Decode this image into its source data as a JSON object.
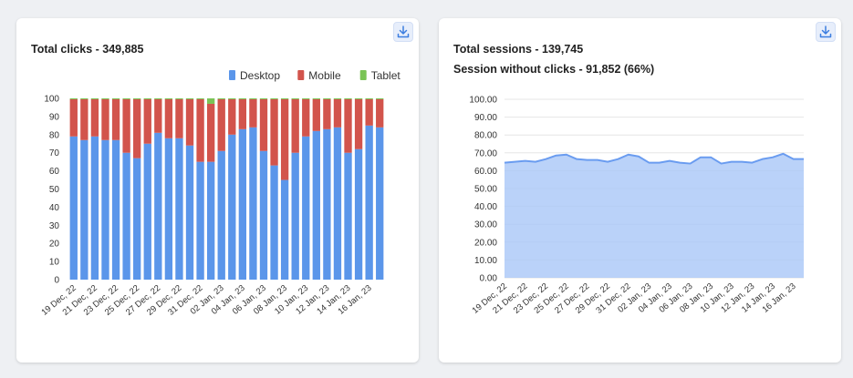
{
  "left_card": {
    "title": "Total clicks - 349,885",
    "download_icon": "download-icon"
  },
  "right_card": {
    "title": "Total sessions - 139,745",
    "subtitle": "Session without clicks - 91,852 (66%)",
    "download_icon": "download-icon"
  },
  "chart_data": [
    {
      "type": "bar",
      "stacked": true,
      "categories": [
        "19 Dec, 22",
        "20 Dec, 22",
        "21 Dec, 22",
        "22 Dec, 22",
        "23 Dec, 22",
        "24 Dec, 22",
        "25 Dec, 22",
        "26 Dec, 22",
        "27 Dec, 22",
        "28 Dec, 22",
        "29 Dec, 22",
        "30 Dec, 22",
        "31 Dec, 22",
        "01 Jan, 23",
        "02 Jan, 23",
        "03 Jan, 23",
        "04 Jan, 23",
        "05 Jan, 23",
        "06 Jan, 23",
        "07 Jan, 23",
        "08 Jan, 23",
        "09 Jan, 23",
        "10 Jan, 23",
        "11 Jan, 23",
        "12 Jan, 23",
        "13 Jan, 23",
        "14 Jan, 23",
        "15 Jan, 23",
        "16 Jan, 23",
        "17 Jan, 23"
      ],
      "x_tick_labels": [
        "19 Dec, 22",
        "21 Dec, 22",
        "23 Dec, 22",
        "25 Dec, 22",
        "27 Dec, 22",
        "29 Dec, 22",
        "31 Dec, 22",
        "02 Jan, 23",
        "04 Jan, 23",
        "06 Jan, 23",
        "08 Jan, 23",
        "10 Jan, 23",
        "12 Jan, 23",
        "14 Jan, 23",
        "16 Jan, 23"
      ],
      "series": [
        {
          "name": "Desktop",
          "color": "#5b96ea",
          "values": [
            79,
            77,
            79,
            77,
            77,
            70,
            67,
            75,
            81,
            78,
            78,
            74,
            65,
            65,
            71,
            80,
            83,
            84,
            71,
            63,
            55,
            70,
            79,
            82,
            83,
            84,
            70,
            72,
            85,
            84
          ]
        },
        {
          "name": "Mobile",
          "color": "#d2544c",
          "values": [
            20.5,
            22.5,
            20.5,
            22.5,
            22.5,
            29.5,
            32.5,
            24.5,
            18.5,
            21.5,
            21.5,
            25.5,
            34.5,
            32,
            28.5,
            19.5,
            16.5,
            15.5,
            28.5,
            36.5,
            44.5,
            29.5,
            20.5,
            17.5,
            16.5,
            15.5,
            29.5,
            27.5,
            14.5,
            15.5
          ]
        },
        {
          "name": "Tablet",
          "color": "#7ac456",
          "values": [
            0.5,
            0.5,
            0.5,
            0.5,
            0.5,
            0.5,
            0.5,
            0.5,
            0.5,
            0.5,
            0.5,
            0.5,
            0.5,
            3,
            0.5,
            0.5,
            0.5,
            0.5,
            0.5,
            0.5,
            0.5,
            0.5,
            0.5,
            0.5,
            0.5,
            0.5,
            0.5,
            0.5,
            0.5,
            0.5
          ]
        }
      ],
      "y_ticks": [
        0,
        10,
        20,
        30,
        40,
        50,
        60,
        70,
        80,
        90,
        100
      ],
      "ylim": [
        0,
        100
      ],
      "legend_position": "top-right",
      "grid": false
    },
    {
      "type": "area",
      "categories": [
        "19 Dec, 22",
        "20 Dec, 22",
        "21 Dec, 22",
        "22 Dec, 22",
        "23 Dec, 22",
        "24 Dec, 22",
        "25 Dec, 22",
        "26 Dec, 22",
        "27 Dec, 22",
        "28 Dec, 22",
        "29 Dec, 22",
        "30 Dec, 22",
        "31 Dec, 22",
        "01 Jan, 23",
        "02 Jan, 23",
        "03 Jan, 23",
        "04 Jan, 23",
        "05 Jan, 23",
        "06 Jan, 23",
        "07 Jan, 23",
        "08 Jan, 23",
        "09 Jan, 23",
        "10 Jan, 23",
        "11 Jan, 23",
        "12 Jan, 23",
        "13 Jan, 23",
        "14 Jan, 23",
        "15 Jan, 23",
        "16 Jan, 23",
        "17 Jan, 23"
      ],
      "x_tick_labels": [
        "19 Dec, 22",
        "21 Dec, 22",
        "23 Dec, 22",
        "25 Dec, 22",
        "27 Dec, 22",
        "29 Dec, 22",
        "31 Dec, 22",
        "02 Jan, 23",
        "04 Jan, 23",
        "06 Jan, 23",
        "08 Jan, 23",
        "10 Jan, 23",
        "12 Jan, 23",
        "14 Jan, 23",
        "16 Jan, 23"
      ],
      "values": [
        64.5,
        65,
        65.5,
        65,
        66.5,
        68.5,
        69,
        66.5,
        66,
        66,
        65,
        66.5,
        69,
        68,
        64.5,
        64.5,
        65.5,
        64.5,
        64,
        67.5,
        67.5,
        64,
        65,
        65,
        64.5,
        66.5,
        67.5,
        69.5,
        66.5,
        66.5
      ],
      "y_ticks": [
        "0.00",
        "10.00",
        "20.00",
        "30.00",
        "40.00",
        "50.00",
        "60.00",
        "70.00",
        "80.00",
        "90.00",
        "100.00"
      ],
      "ylim": [
        0,
        100
      ],
      "grid": true,
      "line_color": "#6a9cf0",
      "fill_color": "#a9c7f7"
    }
  ]
}
